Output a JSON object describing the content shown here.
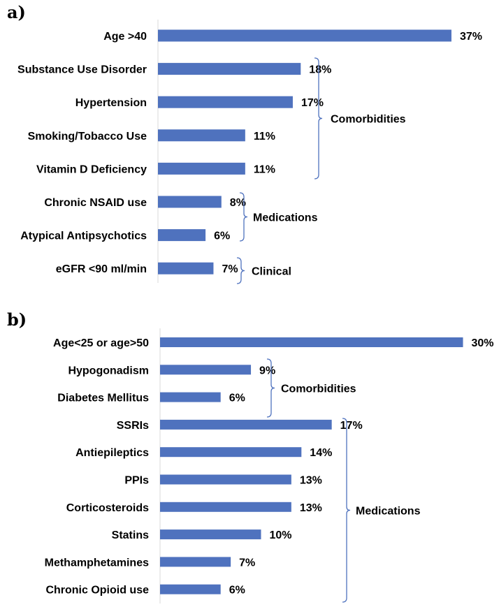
{
  "chart_data": [
    {
      "type": "bar",
      "orientation": "horizontal",
      "panel_label": "a)",
      "categories": [
        "Age >40",
        "Substance Use Disorder",
        "Hypertension",
        "Smoking/Tobacco Use",
        "Vitamin D Deficiency",
        "Chronic NSAID use",
        "Atypical Antipsychotics",
        "eGFR <90 ml/min"
      ],
      "values": [
        37,
        18,
        17,
        11,
        11,
        8,
        6,
        7
      ],
      "value_labels": [
        "37%",
        "18%",
        "17%",
        "11%",
        "11%",
        "8%",
        "6%",
        "7%"
      ],
      "groups": [
        {
          "label": "Comorbidities",
          "categories": [
            "Substance Use Disorder",
            "Hypertension",
            "Smoking/Tobacco Use",
            "Vitamin D Deficiency"
          ]
        },
        {
          "label": "Medications",
          "categories": [
            "Chronic NSAID use",
            "Atypical Antipsychotics"
          ]
        },
        {
          "label": "Clinical",
          "categories": [
            "eGFR <90 ml/min"
          ]
        }
      ],
      "bar_color": "#4f72be",
      "grid": false
    },
    {
      "type": "bar",
      "orientation": "horizontal",
      "panel_label": "b)",
      "categories": [
        "Age<25 or age>50",
        "Hypogonadism",
        "Diabetes Mellitus",
        "SSRIs",
        "Antiepileptics",
        "PPIs",
        "Corticosteroids",
        "Statins",
        "Methamphetamines",
        "Chronic Opioid use"
      ],
      "values": [
        30,
        9,
        6,
        17,
        14,
        13,
        13,
        10,
        7,
        6
      ],
      "value_labels": [
        "30%",
        "9%",
        "6%",
        "17%",
        "14%",
        "13%",
        "13%",
        "10%",
        "7%",
        "6%"
      ],
      "groups": [
        {
          "label": "Comorbidities",
          "categories": [
            "Hypogonadism",
            "Diabetes Mellitus"
          ]
        },
        {
          "label": "Medications",
          "categories": [
            "SSRIs",
            "Antiepileptics",
            "PPIs",
            "Corticosteroids",
            "Statins",
            "Methamphetamines",
            "Chronic Opioid use"
          ]
        }
      ],
      "bar_color": "#4f72be",
      "grid": false
    }
  ]
}
